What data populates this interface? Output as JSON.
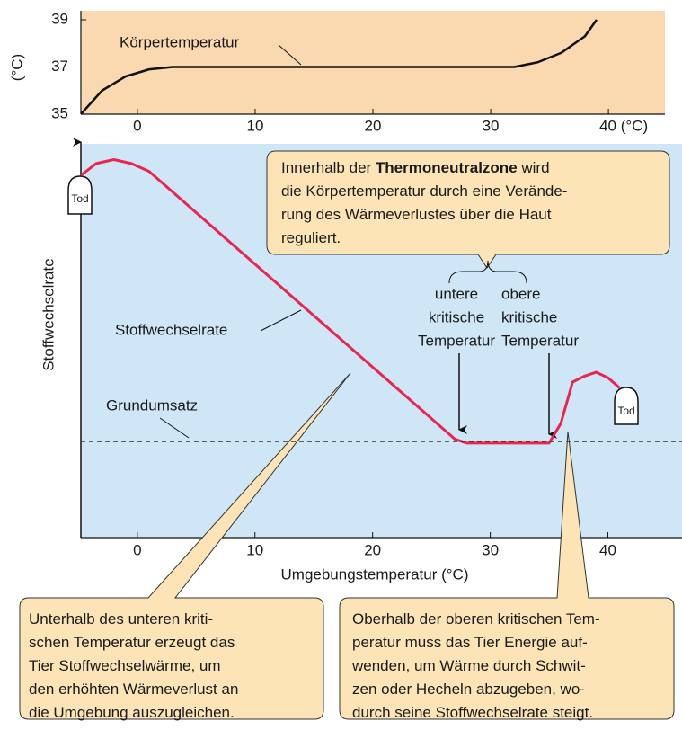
{
  "chart_data": [
    {
      "type": "line",
      "y_label": "(°C)",
      "xlim": [
        -4.8,
        44.8
      ],
      "ylim": [
        35,
        39
      ],
      "xticks": [
        0,
        10,
        20,
        30,
        {
          "value": 40,
          "label": "40 (°C)"
        }
      ],
      "yticks": [
        35,
        37,
        39
      ],
      "series": [
        {
          "name": "Körpertemperatur",
          "color": "#111111",
          "x": [
            -4.8,
            -3,
            -1,
            1,
            3,
            32,
            34,
            36,
            38,
            39
          ],
          "values": [
            35,
            36,
            36.6,
            36.9,
            37,
            37,
            37.2,
            37.6,
            38.3,
            39
          ]
        }
      ]
    },
    {
      "type": "line",
      "x_label": "Umgebungstemperatur (°C)",
      "y_label": "Stoffwechselrate",
      "xlim": [
        -4.8,
        46.3
      ],
      "ylim": [
        0,
        100
      ],
      "xticks": [
        0,
        10,
        20,
        30,
        40
      ],
      "series": [
        {
          "name": "Stoffwechselrate",
          "color": "#e8264f",
          "x": [
            -4.8,
            -3.5,
            -2,
            -0.5,
            1,
            27,
            28,
            35,
            36,
            37,
            38,
            39,
            40,
            41
          ],
          "values": [
            92,
            95,
            96,
            95,
            93,
            25,
            24,
            24,
            29,
            39.5,
            41,
            42,
            40.6,
            38
          ]
        },
        {
          "name": "Grundumsatz",
          "color": "#333333",
          "dashed": true,
          "x": [
            -4.8,
            46.3
          ],
          "values": [
            24.4,
            24.4
          ]
        }
      ],
      "lower_label": [
        "untere",
        "kritische",
        "Temperatur"
      ],
      "upper_label": [
        "obere",
        "kritische",
        "Temperatur"
      ],
      "death_labels": [
        "Tod",
        "Tod"
      ],
      "callouts": [
        {
          "lines": [
            [
              {
                "text": "Innerhalb der "
              },
              {
                "text": "Thermoneutralzone",
                "bold": true
              },
              {
                "text": " wird"
              }
            ],
            [
              {
                "text": "die Körpertemperatur durch eine Verände-"
              }
            ],
            [
              {
                "text": "rung des Wärmeverlustes über die Haut"
              }
            ],
            [
              {
                "text": "reguliert."
              }
            ]
          ]
        },
        {
          "lines": [
            [
              {
                "text": "Unterhalb des unteren kriti-"
              }
            ],
            [
              {
                "text": "schen Temperatur erzeugt das"
              }
            ],
            [
              {
                "text": "Tier Stoffwechselwärme, um"
              }
            ],
            [
              {
                "text": "den erhöhten Wärmeverlust an"
              }
            ],
            [
              {
                "text": "die Umgebung auszugleichen."
              }
            ]
          ]
        },
        {
          "lines": [
            [
              {
                "text": "Oberhalb der oberen kritischen Tem-"
              }
            ],
            [
              {
                "text": "peratur muss das Tier Energie auf-"
              }
            ],
            [
              {
                "text": "wenden, um Wärme durch Schwit-"
              }
            ],
            [
              {
                "text": "zen oder Hecheln abzugeben, wo-"
              }
            ],
            [
              {
                "text": "durch seine Stoffwechselrate steigt."
              }
            ]
          ]
        }
      ]
    }
  ]
}
